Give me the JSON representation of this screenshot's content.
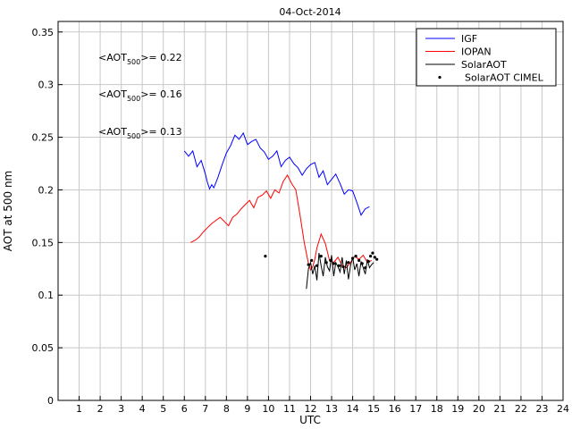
{
  "chart_data": {
    "type": "line",
    "title": "04-Oct-2014",
    "xlabel": "UTC",
    "ylabel": "AOT at 500 nm",
    "xlim": [
      0,
      24
    ],
    "ylim": [
      0,
      0.36
    ],
    "xticks": [
      1,
      2,
      3,
      4,
      5,
      6,
      7,
      8,
      9,
      10,
      11,
      12,
      13,
      14,
      15,
      16,
      17,
      18,
      19,
      20,
      21,
      22,
      23,
      24
    ],
    "yticks": [
      0,
      0.05,
      0.1,
      0.15,
      0.2,
      0.25,
      0.3,
      0.35
    ],
    "grid": true,
    "legend_position": "top-right",
    "annotations": [
      {
        "pre": "<AOT",
        "sub": "500",
        "post": ">= 0.22",
        "color": "#0000ff"
      },
      {
        "pre": "<AOT",
        "sub": "500",
        "post": ">= 0.16",
        "color": "#ff0000"
      },
      {
        "pre": "<AOT",
        "sub": "500",
        "post": ">= 0.13",
        "color": "#000000"
      }
    ],
    "series": [
      {
        "name": "IGF",
        "color": "#0000ff",
        "style": "line",
        "x": [
          6.0,
          6.2,
          6.4,
          6.6,
          6.8,
          7.0,
          7.1,
          7.2,
          7.3,
          7.4,
          7.5,
          7.6,
          7.8,
          8.0,
          8.2,
          8.4,
          8.6,
          8.8,
          9.0,
          9.2,
          9.4,
          9.6,
          9.8,
          10.0,
          10.2,
          10.4,
          10.6,
          10.8,
          11.0,
          11.2,
          11.4,
          11.6,
          11.8,
          12.0,
          12.2,
          12.4,
          12.6,
          12.8,
          13.0,
          13.2,
          13.4,
          13.6,
          13.8,
          14.0,
          14.2,
          14.4,
          14.6,
          14.8
        ],
        "y": [
          0.237,
          0.232,
          0.237,
          0.222,
          0.228,
          0.215,
          0.207,
          0.201,
          0.205,
          0.202,
          0.207,
          0.212,
          0.224,
          0.235,
          0.242,
          0.252,
          0.248,
          0.254,
          0.243,
          0.246,
          0.248,
          0.24,
          0.236,
          0.229,
          0.232,
          0.237,
          0.222,
          0.228,
          0.231,
          0.225,
          0.221,
          0.214,
          0.22,
          0.224,
          0.226,
          0.212,
          0.218,
          0.205,
          0.21,
          0.215,
          0.206,
          0.196,
          0.2,
          0.199,
          0.188,
          0.176,
          0.182,
          0.184
        ]
      },
      {
        "name": "IOPAN",
        "color": "#ff0000",
        "style": "line",
        "x": [
          6.3,
          6.5,
          6.7,
          6.9,
          7.1,
          7.3,
          7.5,
          7.7,
          7.9,
          8.1,
          8.3,
          8.5,
          8.7,
          8.9,
          9.1,
          9.3,
          9.5,
          9.7,
          9.9,
          10.1,
          10.3,
          10.5,
          10.7,
          10.9,
          11.1,
          11.3,
          11.5,
          11.7,
          11.9,
          12.0,
          12.1,
          12.2,
          12.3,
          12.5,
          12.7,
          12.9,
          13.1,
          13.3,
          13.5,
          13.7,
          13.9,
          14.1,
          14.3,
          14.5,
          14.7,
          14.9
        ],
        "y": [
          0.15,
          0.152,
          0.155,
          0.16,
          0.164,
          0.168,
          0.171,
          0.174,
          0.17,
          0.166,
          0.174,
          0.177,
          0.182,
          0.186,
          0.19,
          0.183,
          0.193,
          0.195,
          0.199,
          0.192,
          0.2,
          0.197,
          0.208,
          0.214,
          0.206,
          0.2,
          0.176,
          0.15,
          0.13,
          0.124,
          0.127,
          0.134,
          0.145,
          0.158,
          0.149,
          0.133,
          0.131,
          0.136,
          0.128,
          0.126,
          0.131,
          0.137,
          0.134,
          0.138,
          0.131,
          0.133
        ]
      },
      {
        "name": "SolarAOT",
        "color": "#000000",
        "style": "line",
        "x": [
          11.8,
          11.9,
          12.0,
          12.1,
          12.2,
          12.3,
          12.4,
          12.5,
          12.6,
          12.7,
          12.8,
          12.9,
          13.0,
          13.1,
          13.2,
          13.3,
          13.4,
          13.5,
          13.6,
          13.7,
          13.8,
          13.9,
          14.0,
          14.1,
          14.2,
          14.3,
          14.4,
          14.5,
          14.6,
          14.7,
          14.8,
          14.9,
          15.0
        ],
        "y": [
          0.106,
          0.125,
          0.131,
          0.12,
          0.128,
          0.114,
          0.14,
          0.128,
          0.118,
          0.136,
          0.127,
          0.123,
          0.138,
          0.118,
          0.131,
          0.127,
          0.122,
          0.136,
          0.12,
          0.133,
          0.115,
          0.128,
          0.136,
          0.124,
          0.13,
          0.118,
          0.132,
          0.126,
          0.12,
          0.134,
          0.126,
          0.129,
          0.131
        ]
      },
      {
        "name": "SolarAOT CIMEL",
        "color": "#000000",
        "style": "dots",
        "x": [
          9.85,
          11.9,
          12.05,
          12.3,
          12.5,
          12.75,
          12.95,
          13.1,
          13.35,
          13.55,
          13.8,
          14.0,
          14.15,
          14.3,
          14.45,
          14.6,
          14.75,
          14.85,
          14.95,
          15.05,
          15.15
        ],
        "y": [
          0.137,
          0.129,
          0.133,
          0.128,
          0.137,
          0.131,
          0.133,
          0.13,
          0.128,
          0.127,
          0.131,
          0.135,
          0.137,
          0.133,
          0.13,
          0.126,
          0.132,
          0.137,
          0.14,
          0.136,
          0.134
        ]
      }
    ]
  }
}
